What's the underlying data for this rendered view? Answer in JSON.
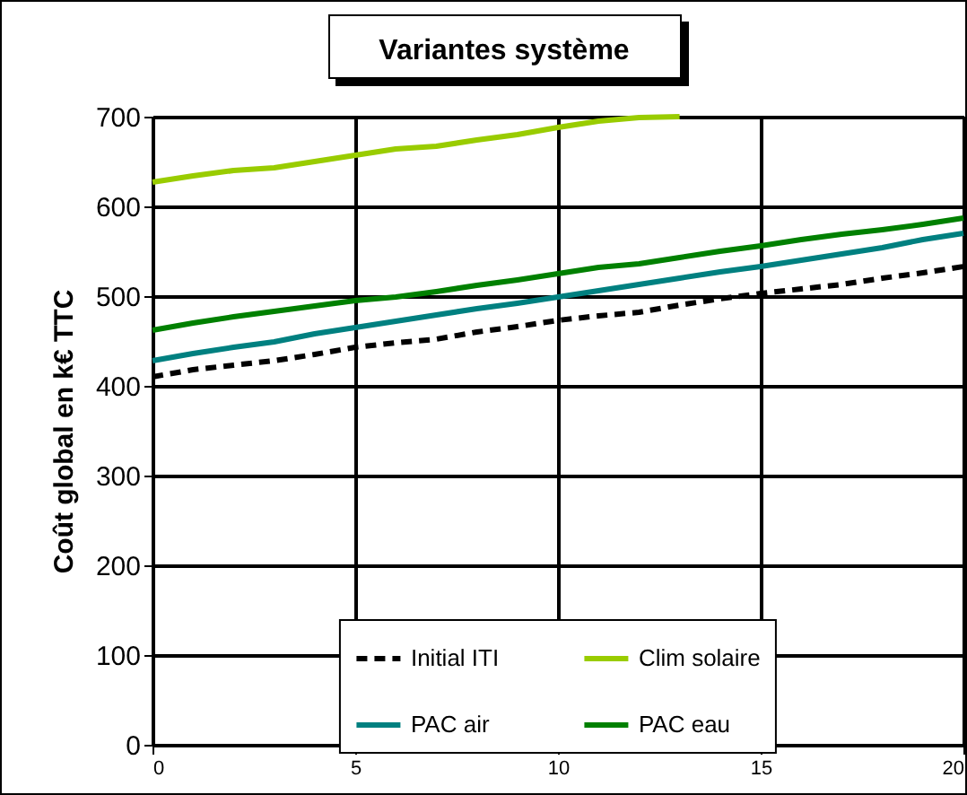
{
  "chart_data": {
    "type": "line",
    "title": "Variantes système",
    "ylabel": "Coût global en k€ TTC",
    "x": [
      0,
      1,
      2,
      3,
      4,
      5,
      6,
      7,
      8,
      9,
      10,
      11,
      12,
      13,
      14,
      15,
      16,
      17,
      18,
      19,
      20
    ],
    "xlim": [
      0,
      20
    ],
    "xticks": [
      0,
      5,
      10,
      15,
      20
    ],
    "ylim": [
      0,
      700
    ],
    "yticks": [
      0,
      100,
      200,
      300,
      400,
      500,
      600,
      700
    ],
    "grid": true,
    "legend": "bottom",
    "marker": "none",
    "series": [
      {
        "name": "Initial ITI",
        "color": "#000000",
        "line_style": "dashed",
        "values": [
          410,
          418,
          423,
          428,
          435,
          443,
          448,
          452,
          460,
          466,
          473,
          478,
          482,
          490,
          497,
          503,
          508,
          513,
          520,
          526,
          533
        ]
      },
      {
        "name": "Clim solaire",
        "color": "#99cc00",
        "line_style": "solid",
        "values": [
          627,
          634,
          640,
          643,
          650,
          657,
          664,
          667,
          674,
          680,
          688,
          695,
          699,
          700,
          null,
          null,
          null,
          null,
          null,
          null,
          null
        ]
      },
      {
        "name": "PAC air",
        "color": "#008080",
        "line_style": "solid",
        "values": [
          428,
          436,
          443,
          449,
          458,
          465,
          472,
          479,
          486,
          492,
          499,
          506,
          513,
          520,
          527,
          533,
          540,
          547,
          554,
          563,
          570
        ]
      },
      {
        "name": "PAC eau",
        "color": "#008000",
        "line_style": "solid",
        "values": [
          462,
          470,
          477,
          483,
          489,
          495,
          499,
          505,
          512,
          518,
          525,
          532,
          536,
          543,
          550,
          556,
          563,
          569,
          574,
          580,
          587
        ]
      }
    ]
  }
}
